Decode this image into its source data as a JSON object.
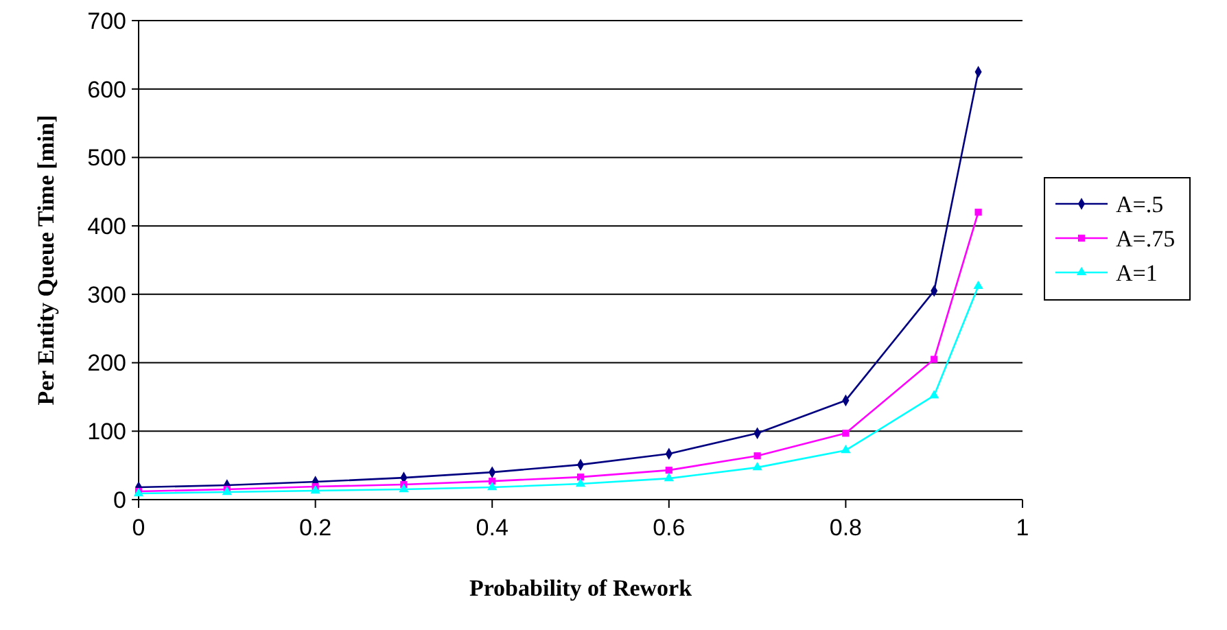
{
  "chart_data": {
    "type": "line",
    "xlabel": "Probability of Rework",
    "ylabel": "Per Entity Queue Time [min]",
    "x": [
      0,
      0.1,
      0.2,
      0.3,
      0.4,
      0.5,
      0.6,
      0.7,
      0.8,
      0.9,
      0.95
    ],
    "xlim": [
      0,
      1
    ],
    "xticks": [
      0,
      0.2,
      0.4,
      0.6,
      0.8,
      1
    ],
    "ylim": [
      0,
      700
    ],
    "yticks": [
      0,
      100,
      200,
      300,
      400,
      500,
      600,
      700
    ],
    "grid": "y",
    "legend": "right",
    "series": [
      {
        "name": "A=.5",
        "color": "#000080",
        "marker": "diamond",
        "values": [
          18,
          21,
          26,
          32,
          40,
          51,
          67,
          97,
          145,
          305,
          625
        ]
      },
      {
        "name": "A=.75",
        "color": "#ff00ff",
        "marker": "square",
        "values": [
          12,
          15,
          19,
          22,
          27,
          33,
          43,
          64,
          97,
          205,
          420
        ]
      },
      {
        "name": "A=1",
        "color": "#00ffff",
        "marker": "triangle",
        "values": [
          9,
          11,
          13,
          15,
          18,
          23,
          31,
          47,
          72,
          152,
          312
        ]
      }
    ]
  }
}
